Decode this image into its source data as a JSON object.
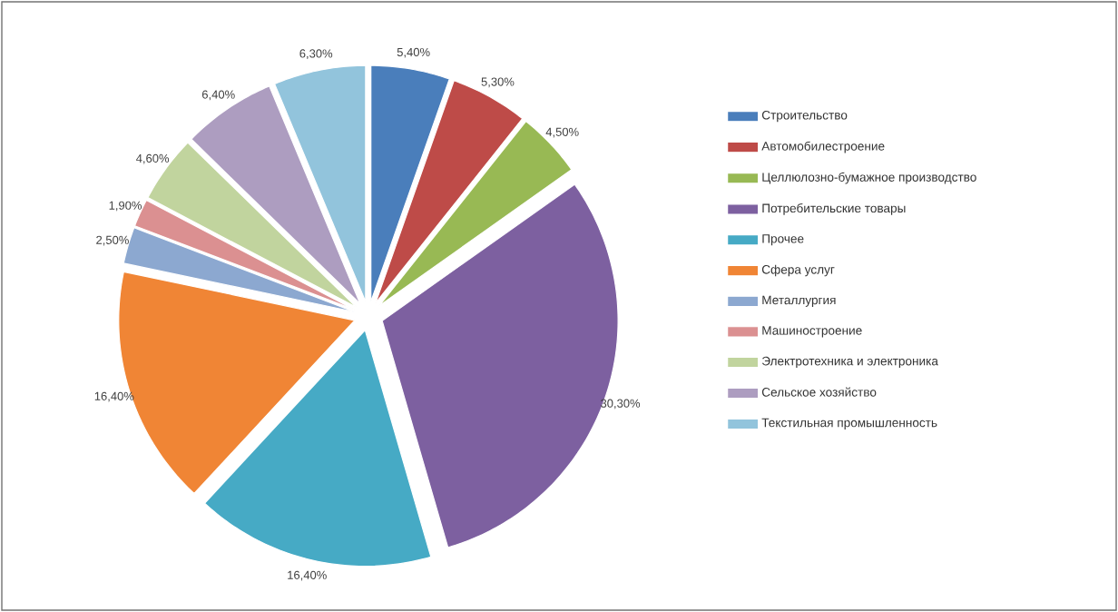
{
  "chart_data": {
    "type": "pie",
    "categories": [
      "Строительство",
      "Автомобилестроение",
      "Целлюлозно-бумажное производство",
      "Потребительские товары",
      "Прочее",
      "Сфера услуг",
      "Металлургия",
      "Машиностроение",
      "Электротехника и электроника",
      "Сельское хозяйство",
      "Текстильная промышленность"
    ],
    "values": [
      5.4,
      5.3,
      4.5,
      30.3,
      16.4,
      16.4,
      2.5,
      1.9,
      4.6,
      6.4,
      6.3
    ],
    "value_labels": [
      "5,40%",
      "5,30%",
      "4,50%",
      "30,30%",
      "16,40%",
      "16,40%",
      "2,50%",
      "1,90%",
      "4,60%",
      "6,40%",
      "6,30%"
    ],
    "colors": [
      "#4a7ebb",
      "#be4b48",
      "#98b954",
      "#7d60a0",
      "#46aac5",
      "#f08535",
      "#8ca8d0",
      "#db9091",
      "#c1d49e",
      "#ad9dc0",
      "#92c4dc"
    ],
    "legend": "right"
  }
}
